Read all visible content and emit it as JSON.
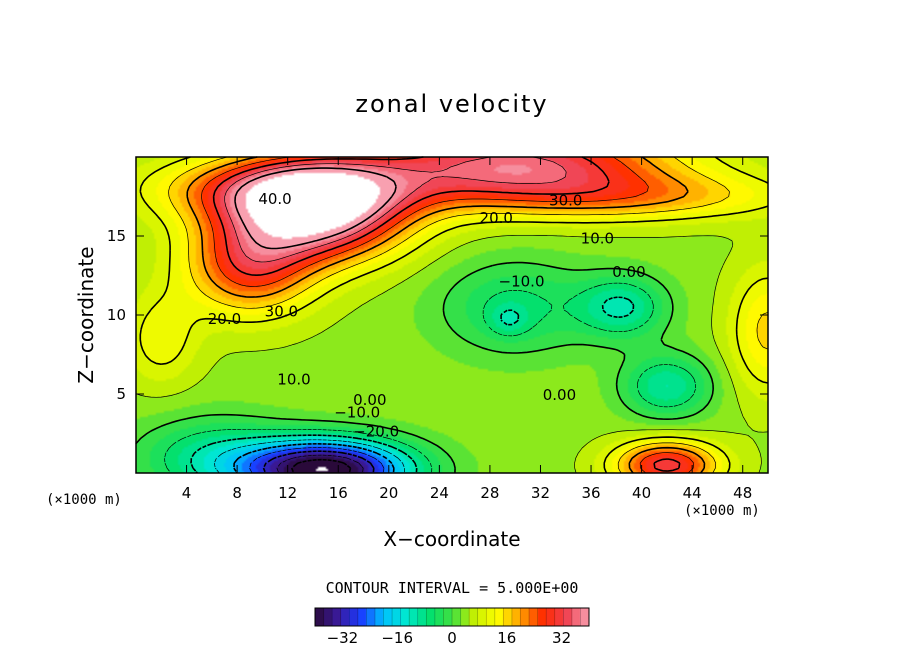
{
  "chart_data": {
    "type": "heatmap",
    "title": "zonal velocity",
    "xlabel": "X−coordinate",
    "ylabel": "Z−coordinate",
    "x_unit": "(×1000 m)",
    "y_unit": "(×1000 m)",
    "xlim": [
      0,
      50
    ],
    "ylim": [
      0,
      20
    ],
    "x_ticks": [
      "4",
      "8",
      "12",
      "16",
      "20",
      "24",
      "28",
      "32",
      "36",
      "40",
      "44",
      "48"
    ],
    "x_tick_values": [
      4,
      8,
      12,
      16,
      20,
      24,
      28,
      32,
      36,
      40,
      44,
      48
    ],
    "y_ticks": [
      "5",
      "10",
      "15"
    ],
    "y_tick_values": [
      5,
      10,
      15
    ],
    "contour_interval_text": "CONTOUR INTERVAL = 5.000E+00",
    "contour_interval": 5.0,
    "colorbar": {
      "range": [
        -40,
        40
      ],
      "tick_labels": [
        "−32",
        "−16",
        "0",
        "16",
        "32"
      ],
      "tick_values": [
        -32,
        -16,
        0,
        16,
        32
      ]
    },
    "contour_labels": [
      {
        "text": "40.0",
        "x": 11,
        "z": 17.3
      },
      {
        "text": "30.0",
        "x": 11.5,
        "z": 10.2
      },
      {
        "text": "20.0",
        "x": 7,
        "z": 9.7
      },
      {
        "text": "10.0",
        "x": 12.5,
        "z": 5.9
      },
      {
        "text": "0.00",
        "x": 18.5,
        "z": 4.6
      },
      {
        "text": "−10.0",
        "x": 17.5,
        "z": 3.8
      },
      {
        "text": "−20.0",
        "x": 19,
        "z": 2.6
      },
      {
        "text": "20.0",
        "x": 28.5,
        "z": 16.1
      },
      {
        "text": "30.0",
        "x": 34,
        "z": 17.2
      },
      {
        "text": "10.0",
        "x": 36.5,
        "z": 14.8
      },
      {
        "text": "0.00",
        "x": 39,
        "z": 12.7
      },
      {
        "text": "−10.0",
        "x": 30.5,
        "z": 12.1
      },
      {
        "text": "0.00",
        "x": 33.5,
        "z": 4.9
      }
    ],
    "field_features": [
      {
        "x": 14,
        "z": 16.5,
        "value": 42,
        "sx": 7,
        "sz": 3.0
      },
      {
        "x": 9,
        "z": 13,
        "value": 22,
        "sx": 5,
        "sz": 3
      },
      {
        "x": 30,
        "z": 19.5,
        "value": 32,
        "sx": 12,
        "sz": 2.5
      },
      {
        "x": 12,
        "z": 18,
        "value": 20,
        "sx": 10,
        "sz": 2
      },
      {
        "x": 40,
        "z": 17.5,
        "value": 12,
        "sx": 12,
        "sz": 1.5
      },
      {
        "x": 15,
        "z": 0.2,
        "value": -48,
        "sx": 6.5,
        "sz": 1.9
      },
      {
        "x": 6,
        "z": 1,
        "value": -12,
        "sx": 6,
        "sz": 2.5
      },
      {
        "x": 30,
        "z": 10.5,
        "value": -10,
        "sx": 6,
        "sz": 3
      },
      {
        "x": 38.5,
        "z": 10.5,
        "value": -14,
        "sx": 3.5,
        "sz": 2
      },
      {
        "x": 42,
        "z": 5.5,
        "value": -14,
        "sx": 3.5,
        "sz": 2
      },
      {
        "x": 29.5,
        "z": 9.7,
        "value": -6,
        "sx": 1.5,
        "sz": 1
      },
      {
        "x": 42,
        "z": 0.5,
        "value": 28,
        "sx": 4,
        "sz": 1.5
      },
      {
        "x": 50,
        "z": 9,
        "value": 12,
        "sx": 3,
        "sz": 4
      },
      {
        "x": 2,
        "z": 8.5,
        "value": 8,
        "sx": 3,
        "sz": 3
      }
    ],
    "background_value": 4,
    "mask_threshold": 45,
    "colors": {
      "stops": [
        "#2a0a3a",
        "#3a1a9a",
        "#1a3aff",
        "#00c0ff",
        "#00e8d0",
        "#00e070",
        "#40e040",
        "#c8f000",
        "#ffff00",
        "#ffa000",
        "#ff2a00",
        "#f04050",
        "#f8a0b0"
      ]
    }
  }
}
